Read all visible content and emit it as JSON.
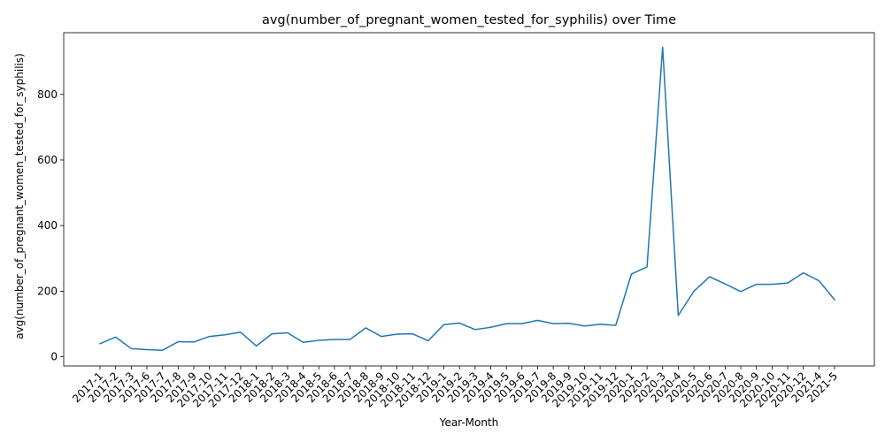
{
  "chart_data": {
    "type": "line",
    "title": "avg(number_of_pregnant_women_tested_for_syphilis) over Time",
    "xlabel": "Year-Month",
    "ylabel": "avg(number_of_pregnant_women_tested_for_syphilis)",
    "ylim": [
      -28,
      988
    ],
    "yticks": [
      0,
      200,
      400,
      600,
      800
    ],
    "grid": false,
    "legend": "none",
    "color": "#1f77b4",
    "categories": [
      "2017-1",
      "2017-2",
      "2017-3",
      "2017-6",
      "2017-7",
      "2017-8",
      "2017-9",
      "2017-10",
      "2017-11",
      "2017-12",
      "2018-1",
      "2018-2",
      "2018-3",
      "2018-4",
      "2018-5",
      "2018-6",
      "2018-7",
      "2018-8",
      "2018-9",
      "2018-10",
      "2018-11",
      "2018-12",
      "2019-1",
      "2019-2",
      "2019-3",
      "2019-4",
      "2019-5",
      "2019-6",
      "2019-7",
      "2019-8",
      "2019-9",
      "2019-10",
      "2019-11",
      "2019-12",
      "2020-1",
      "2020-2",
      "2020-3",
      "2020-4",
      "2020-5",
      "2020-6",
      "2020-7",
      "2020-8",
      "2020-9",
      "2020-10",
      "2020-11",
      "2020-12",
      "2021-4",
      "2021-5"
    ],
    "values": [
      40,
      60,
      25,
      22,
      20,
      46,
      45,
      62,
      67,
      75,
      33,
      70,
      73,
      44,
      50,
      53,
      53,
      88,
      62,
      69,
      70,
      49,
      98,
      103,
      83,
      90,
      101,
      101,
      111,
      101,
      102,
      94,
      99,
      96,
      252,
      274,
      944,
      126,
      200,
      244,
      222,
      199,
      221,
      221,
      225,
      256,
      232,
      174
    ]
  }
}
